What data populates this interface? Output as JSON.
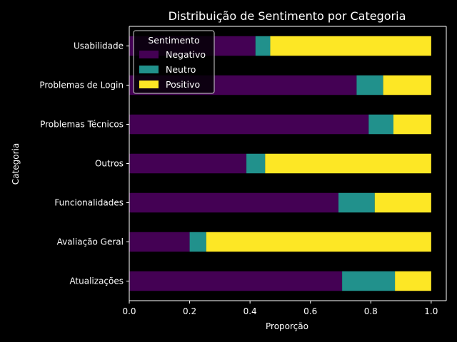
{
  "chart_data": {
    "type": "bar",
    "orientation": "horizontal",
    "stacked": true,
    "title": "Distribuição de Sentimento por Categoria",
    "xlabel": "Proporção",
    "ylabel": "Categoria",
    "xlim": [
      0,
      1.05
    ],
    "xticks": [
      "0.0",
      "0.2",
      "0.4",
      "0.6",
      "0.8",
      "1.0"
    ],
    "xtick_values": [
      0,
      0.2,
      0.4,
      0.6,
      0.8,
      1.0
    ],
    "grid": false,
    "legend": {
      "title": "Sentimento",
      "placement": "top-left"
    },
    "categories": [
      "Atualizações",
      "Avaliação Geral",
      "Funcionalidades",
      "Outros",
      "Problemas Técnicos",
      "Problemas de Login",
      "Usabilidade"
    ],
    "series": [
      {
        "name": "Negativo",
        "color": "#440154",
        "values": [
          0.705,
          0.2,
          0.693,
          0.388,
          0.793,
          0.753,
          0.418
        ]
      },
      {
        "name": "Neutro",
        "color": "#21918c",
        "values": [
          0.175,
          0.055,
          0.12,
          0.062,
          0.082,
          0.088,
          0.049
        ]
      },
      {
        "name": "Positivo",
        "color": "#fde725",
        "values": [
          0.12,
          0.745,
          0.187,
          0.55,
          0.125,
          0.159,
          0.533
        ]
      }
    ]
  }
}
